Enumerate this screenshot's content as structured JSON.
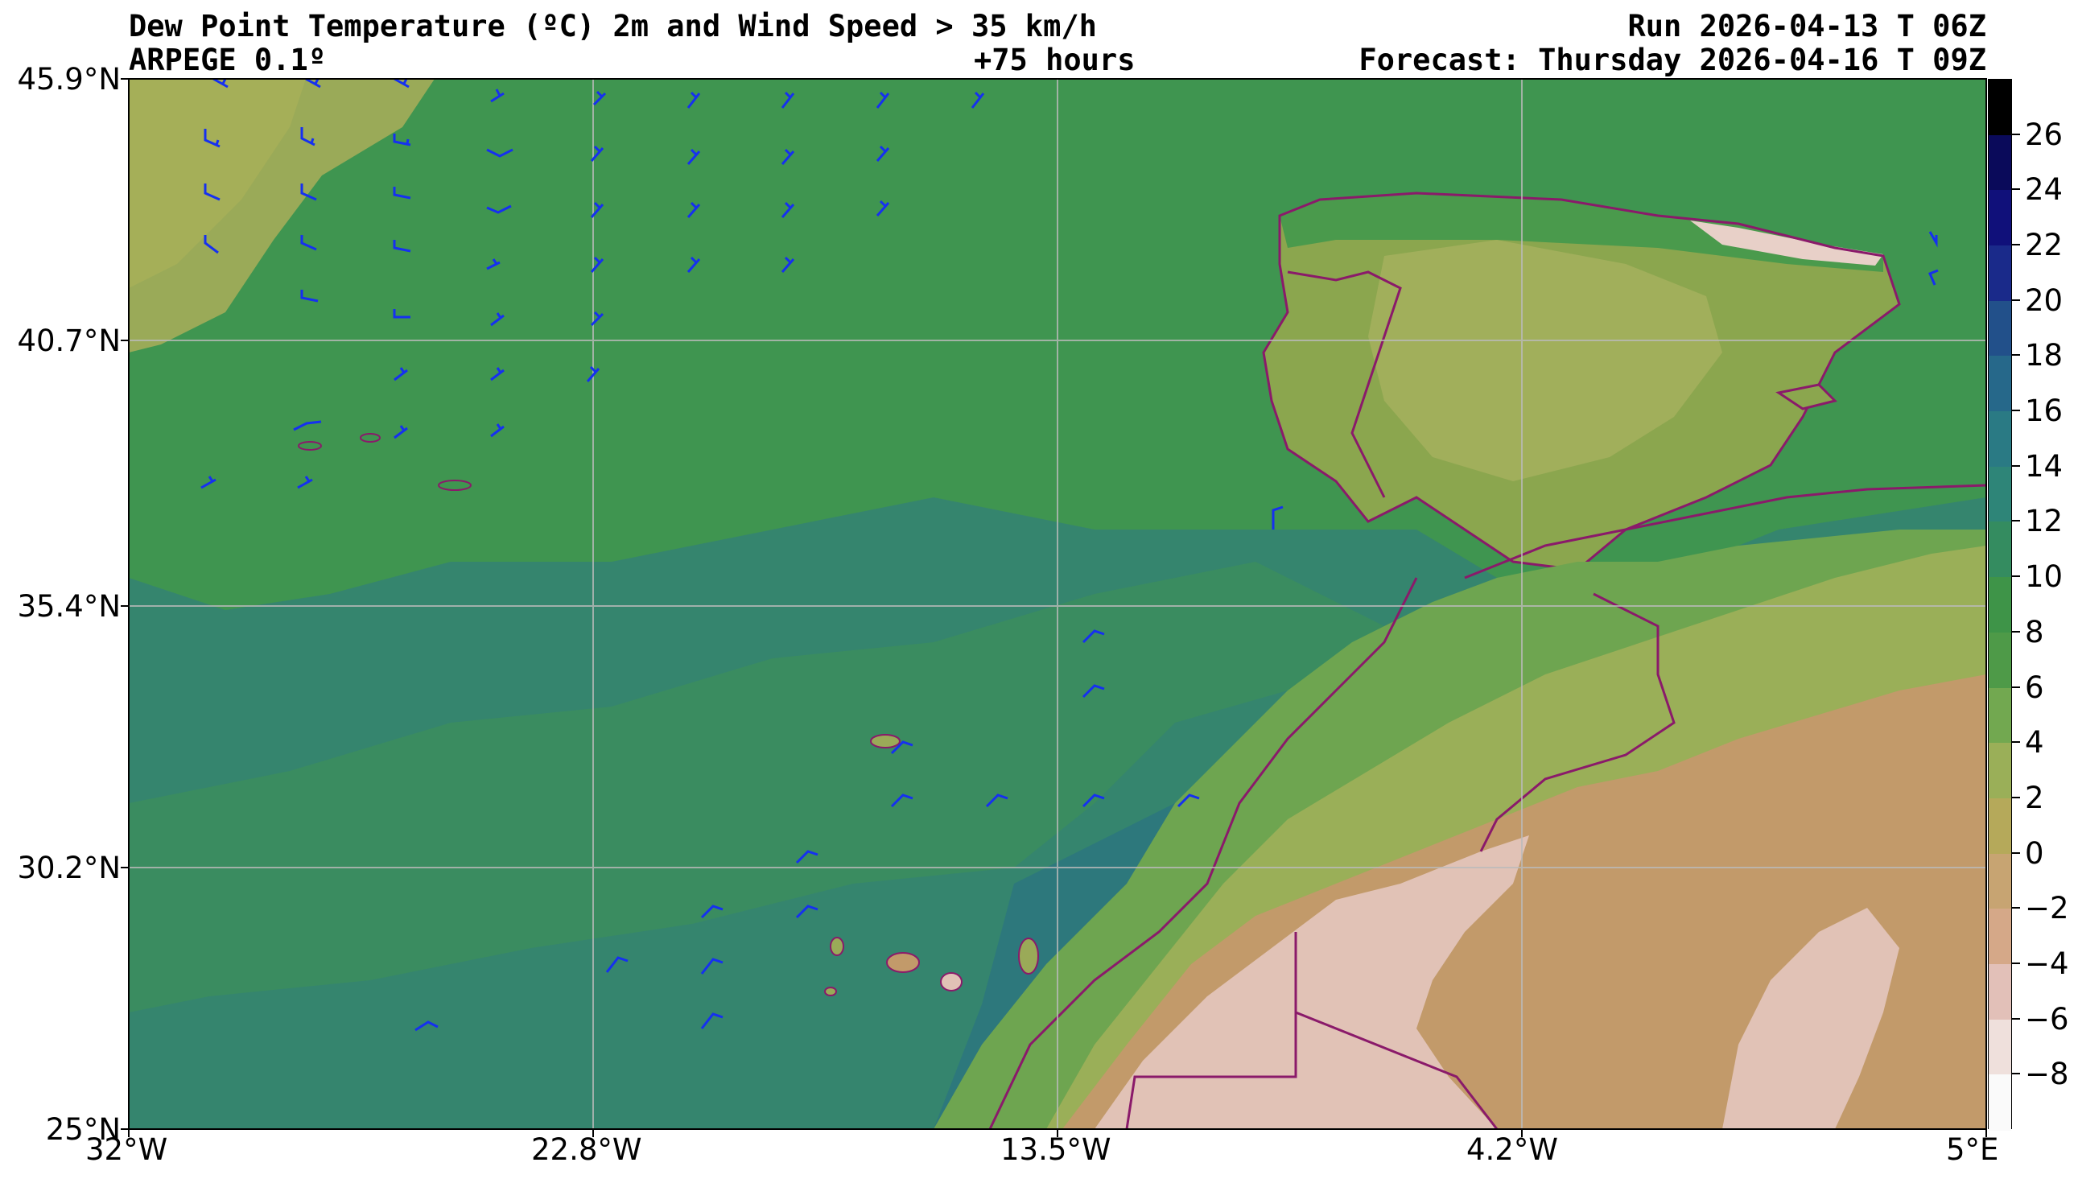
{
  "header": {
    "title_line1": "Dew Point Temperature (ºC) 2m and Wind Speed > 35 km/h",
    "title_line2": "ARPEGE 0.1º",
    "lead_time": "+75 hours",
    "run": "Run 2026-04-13 T 06Z",
    "forecast": "Forecast: Thursday 2026-04-16 T 09Z"
  },
  "axes": {
    "lat_labels": [
      "45.9°N",
      "40.7°N",
      "35.4°N",
      "30.2°N",
      "25°N"
    ],
    "lon_labels": [
      "32°W",
      "22.8°W",
      "13.5°W",
      "4.2°W",
      "5°E"
    ]
  },
  "colorbar": {
    "labels": [
      "26",
      "24",
      "22",
      "20",
      "18",
      "16",
      "14",
      "12",
      "10",
      "8",
      "6",
      "4",
      "2",
      "0",
      "−2",
      "−4",
      "−6",
      "−8"
    ],
    "colors": [
      "#000000",
      "#0a0a5a",
      "#10107a",
      "#1a2a8a",
      "#22508a",
      "#26688a",
      "#2a7a84",
      "#2e8578",
      "#348c60",
      "#3e9448",
      "#4e9a48",
      "#72a850",
      "#9aaf58",
      "#b5a95a",
      "#c7a472",
      "#d5a888",
      "#e2c0b8",
      "#efe0dc",
      "#fafafa"
    ]
  },
  "map": {
    "background_colors": {
      "ocean_main": "#35856e",
      "ocean_dark": "#2d787c",
      "north_green": "#3f9550",
      "northwest_olive": "#9aaa58",
      "iberia_light": "#8ba64e",
      "sahara_tan": "#c29a6a",
      "sahara_pink": "#e1c2b6",
      "border": "#8a1a6a",
      "barb": "#1530f0"
    }
  }
}
